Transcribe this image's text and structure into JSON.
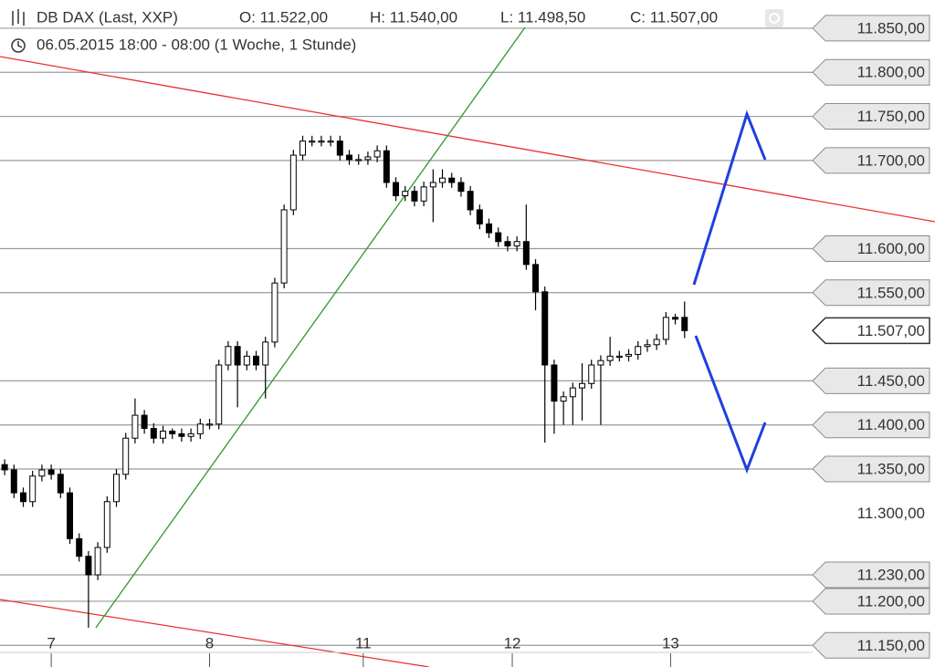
{
  "chart_data": {
    "type": "candlestick",
    "title": "DB DAX (Last, XXP)",
    "ohlc_labels": [
      "O: 11.522,00",
      "H: 11.540,00",
      "L: 11.498,50",
      "C: 11.507,00"
    ],
    "subtitle": "06.05.2015 18:00 - 08:00 (1 Woche, 1 Stunde)",
    "x": [
      0,
      1,
      2,
      3,
      4,
      5,
      6,
      7,
      8,
      9,
      10,
      11,
      12,
      13,
      14,
      15,
      16,
      17,
      18,
      19,
      20,
      21,
      22,
      23,
      24,
      25,
      26,
      27,
      28,
      29,
      30,
      31,
      32,
      33,
      34,
      35,
      36,
      37,
      38,
      39,
      40,
      41,
      42,
      43,
      44,
      45,
      46,
      47,
      48,
      49,
      50,
      51,
      52,
      53,
      54,
      55,
      56,
      57,
      58,
      59,
      60,
      61,
      62,
      63,
      64,
      65,
      66,
      67,
      68,
      69,
      70,
      71,
      72,
      73
    ],
    "open": [
      11355,
      11349,
      11323,
      11313,
      11342,
      11349,
      11344,
      11323,
      11271,
      11251,
      11230,
      11261,
      11313,
      11344,
      11385,
      11411,
      11396,
      11385,
      11393,
      11390,
      11387,
      11390,
      11401,
      11401,
      11468,
      11489,
      11468,
      11478,
      11468,
      11494,
      11561,
      11644,
      11706,
      11722,
      11722,
      11722,
      11722,
      11706,
      11701,
      11701,
      11704,
      11711,
      11675,
      11660,
      11665,
      11654,
      11670,
      11675,
      11680,
      11675,
      11665,
      11644,
      11628,
      11618,
      11608,
      11603,
      11608,
      11582,
      11551,
      11468,
      11427,
      11432,
      11442,
      11447,
      11468,
      11473,
      11478,
      11478,
      11480,
      11489,
      11491,
      11497,
      11522,
      11522
    ],
    "high": [
      11361,
      11355,
      11329,
      11348,
      11355,
      11355,
      11350,
      11329,
      11277,
      11257,
      11267,
      11319,
      11350,
      11391,
      11430,
      11417,
      11402,
      11399,
      11396,
      11396,
      11396,
      11407,
      11407,
      11474,
      11495,
      11495,
      11484,
      11484,
      11500,
      11567,
      11650,
      11712,
      11728,
      11728,
      11728,
      11728,
      11728,
      11712,
      11707,
      11710,
      11717,
      11717,
      11681,
      11671,
      11671,
      11676,
      11690,
      11690,
      11686,
      11681,
      11671,
      11650,
      11634,
      11624,
      11614,
      11614,
      11650,
      11588,
      11557,
      11474,
      11438,
      11448,
      11470,
      11474,
      11479,
      11500,
      11484,
      11486,
      11495,
      11497,
      11503,
      11528,
      11526,
      11540
    ],
    "low": [
      11343,
      11317,
      11307,
      11307,
      11336,
      11338,
      11317,
      11265,
      11245,
      11170,
      11224,
      11255,
      11307,
      11338,
      11379,
      11390,
      11379,
      11379,
      11384,
      11381,
      11381,
      11384,
      11395,
      11395,
      11462,
      11420,
      11462,
      11462,
      11430,
      11488,
      11555,
      11638,
      11700,
      11716,
      11716,
      11716,
      11700,
      11695,
      11695,
      11695,
      11698,
      11669,
      11654,
      11654,
      11648,
      11648,
      11630,
      11669,
      11669,
      11659,
      11638,
      11622,
      11612,
      11602,
      11597,
      11597,
      11576,
      11530,
      11380,
      11390,
      11400,
      11400,
      11405,
      11441,
      11400,
      11467,
      11472,
      11472,
      11474,
      11483,
      11485,
      11491,
      11514,
      11498.5
    ],
    "close": [
      11349,
      11323,
      11313,
      11342,
      11349,
      11344,
      11323,
      11271,
      11251,
      11230,
      11261,
      11313,
      11344,
      11385,
      11411,
      11396,
      11385,
      11393,
      11390,
      11387,
      11390,
      11401,
      11401,
      11468,
      11489,
      11468,
      11478,
      11468,
      11494,
      11561,
      11644,
      11706,
      11722,
      11722,
      11722,
      11722,
      11706,
      11701,
      11701,
      11704,
      11711,
      11675,
      11660,
      11665,
      11654,
      11670,
      11675,
      11680,
      11675,
      11665,
      11644,
      11628,
      11618,
      11608,
      11603,
      11608,
      11582,
      11551,
      11468,
      11427,
      11432,
      11442,
      11447,
      11468,
      11473,
      11478,
      11478,
      11480,
      11489,
      11491,
      11497,
      11522,
      11520,
      11507
    ],
    "up_color": "#ffffff",
    "down_color": "#000000",
    "xlim": [
      -0.5,
      86.75
    ],
    "ylim": [
      11142,
      11882
    ],
    "xticks": [
      {
        "value": 5,
        "label": "7"
      },
      {
        "value": 22,
        "label": "8"
      },
      {
        "value": 38.5,
        "label": "11"
      },
      {
        "value": 54.5,
        "label": "12"
      },
      {
        "value": 71.5,
        "label": "13"
      }
    ],
    "yticks": [
      {
        "value": 11850,
        "label": "11.850,00"
      },
      {
        "value": 11800,
        "label": "11.800,00"
      },
      {
        "value": 11750,
        "label": "11.750,00"
      },
      {
        "value": 11700,
        "label": "11.700,00"
      },
      {
        "value": 11600,
        "label": "11.600,00"
      },
      {
        "value": 11550,
        "label": "11.550,00"
      },
      {
        "value": 11450,
        "label": "11.450,00"
      },
      {
        "value": 11400,
        "label": "11.400,00"
      },
      {
        "value": 11350,
        "label": "11.350,00"
      },
      {
        "value": 11300,
        "label": "11.300,00",
        "style": "plain"
      },
      {
        "value": 11230,
        "label": "11.230,00"
      },
      {
        "value": 11200,
        "label": "11.200,00"
      },
      {
        "value": 11150,
        "label": "11.150,00"
      }
    ],
    "last_price": {
      "value": 11507,
      "label": "11.507,00"
    },
    "grid": true
  }
}
